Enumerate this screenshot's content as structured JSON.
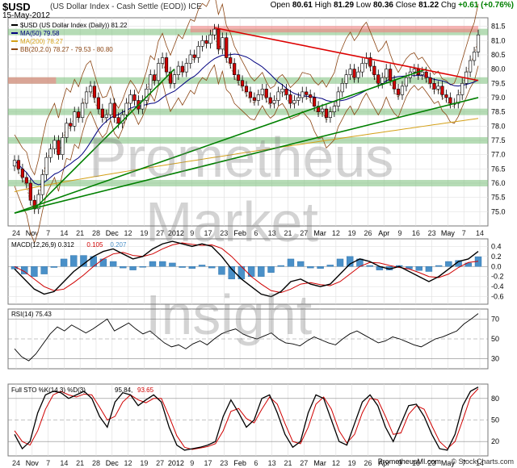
{
  "header": {
    "ticker": "$USD",
    "title": "(US Dollar Index - Cash Settle (EOD)) ICE",
    "date": "15-May-2012",
    "open_label": "Open",
    "open": "80.61",
    "high_label": "High",
    "high": "81.29",
    "low_label": "Low",
    "low": "80.36",
    "close_label": "Close",
    "close": "81.22",
    "chg_label": "Chg",
    "chg": "+0.61 (+0.76%)"
  },
  "watermark": [
    "Prometheus",
    "Market",
    "Insight"
  ],
  "footer": {
    "site": "PrometheusMI.com",
    "credit": "© StockCharts.com"
  },
  "colors": {
    "up": "#ffffff",
    "down": "#d00000",
    "ma50": "#000080",
    "ma200": "#d4a017",
    "bb": "#8b4513",
    "macd_hist": "#4a90c8",
    "signal": "#d00000",
    "trend_green": "#008000",
    "trend_red": "#dd0000",
    "support_green": "#7ac07a",
    "resist_red": "#f08080"
  },
  "x_axis_labels": [
    "24",
    "Nov",
    "7",
    "14",
    "21",
    "28",
    "Dec",
    "12",
    "19",
    "27",
    "2012",
    "9",
    "17",
    "23",
    "Feb",
    "6",
    "13",
    "21",
    "27",
    "Mar",
    "12",
    "19",
    "26",
    "Apr",
    "9",
    "16",
    "23",
    "May",
    "7",
    "14"
  ],
  "chart_data": [
    {
      "type": "candlestick",
      "title": "$USD (US Dollar Index (Daily)) 81.22",
      "legend": [
        {
          "name": "$USD (US Dollar Index (Daily)) 81.22",
          "color": "#000000"
        },
        {
          "name": "MA(50) 79.58",
          "color": "#000080"
        },
        {
          "name": "MA(200) 78.27",
          "color": "#d4a017"
        },
        {
          "name": "BB(20,2.0) 78.27 - 79.53 - 80.80",
          "color": "#8b4513"
        }
      ],
      "ylim": [
        74.5,
        81.8
      ],
      "yticks": [
        75.0,
        75.5,
        76.0,
        76.5,
        77.0,
        77.5,
        78.0,
        78.5,
        79.0,
        79.5,
        80.0,
        80.5,
        81.0,
        81.5
      ],
      "close_series": [
        76.8,
        76.5,
        76.2,
        76.0,
        75.4,
        75.1,
        75.6,
        76.3,
        76.9,
        77.2,
        77.5,
        77.0,
        77.6,
        78.1,
        78.0,
        78.5,
        78.3,
        78.8,
        79.2,
        79.4,
        79.0,
        78.6,
        78.3,
        78.4,
        78.8,
        78.3,
        78.1,
        78.4,
        78.8,
        79.1,
        78.9,
        78.6,
        78.9,
        79.3,
        79.8,
        79.6,
        80.2,
        80.4,
        79.9,
        79.5,
        79.8,
        80.1,
        79.9,
        80.2,
        80.5,
        80.4,
        80.8,
        81.0,
        80.9,
        81.2,
        81.4,
        80.7,
        81.1,
        80.4,
        80.2,
        79.8,
        79.6,
        79.4,
        79.2,
        79.0,
        78.9,
        79.1,
        79.3,
        79.0,
        78.8,
        78.9,
        79.2,
        79.3,
        79.1,
        78.8,
        78.9,
        79.0,
        79.2,
        79.1,
        79.0,
        78.7,
        78.5,
        78.6,
        78.3,
        78.5,
        78.7,
        79.2,
        79.5,
        79.8,
        80.0,
        79.7,
        79.9,
        80.2,
        80.4,
        80.1,
        79.8,
        79.5,
        79.7,
        80.0,
        79.6,
        79.3,
        79.1,
        79.4,
        79.7,
        79.9,
        80.0,
        79.8,
        79.9,
        79.7,
        79.5,
        79.3,
        79.4,
        79.1,
        79.0,
        78.8,
        78.8,
        79.1,
        79.5,
        79.9,
        80.3,
        80.6,
        81.2
      ],
      "ma50": {
        "start": 76.6,
        "end": 79.58
      },
      "ma200": {
        "start": 75.7,
        "end": 78.27
      },
      "trendlines": [
        {
          "color": "green",
          "from": [
            0,
            74.95
          ],
          "to": [
            103,
            80.0
          ]
        },
        {
          "color": "green",
          "from": [
            0,
            74.95
          ],
          "to": [
            116,
            79.0
          ]
        },
        {
          "color": "green",
          "from": [
            5,
            75.1
          ],
          "to": [
            40,
            80.0
          ]
        },
        {
          "color": "red",
          "from": [
            50,
            81.45
          ],
          "to": [
            116,
            79.6
          ]
        }
      ],
      "support_zones": [
        81.3,
        79.6,
        78.5,
        77.5,
        76.0
      ],
      "resistance_zones": [
        81.4,
        79.6
      ]
    },
    {
      "type": "line",
      "title": "MACD(12,26,9) 0.312, 0.105, 0.207",
      "series": [
        {
          "name": "MACD(12,26,9) 0.312",
          "color": "#000000"
        },
        {
          "name": "0.105",
          "color": "#d00000"
        },
        {
          "name": "0.207",
          "color": "#4a90c8"
        }
      ],
      "ylim": [
        -0.75,
        0.55
      ],
      "yticks": [
        -0.6,
        -0.4,
        -0.2,
        0.0,
        0.2,
        0.4
      ],
      "macd": [
        -0.05,
        -0.25,
        -0.45,
        -0.55,
        -0.5,
        -0.3,
        -0.1,
        0.05,
        0.2,
        0.3,
        0.35,
        0.25,
        0.15,
        0.2,
        0.35,
        0.45,
        0.5,
        0.45,
        0.4,
        0.45,
        0.4,
        0.2,
        -0.05,
        -0.25,
        -0.4,
        -0.55,
        -0.6,
        -0.5,
        -0.3,
        -0.25,
        -0.35,
        -0.4,
        -0.35,
        -0.15,
        0.05,
        0.15,
        0.1,
        0.0,
        -0.05,
        0.0,
        -0.1,
        -0.2,
        -0.3,
        -0.2,
        -0.05,
        0.1,
        0.15,
        0.3
      ],
      "signal": [
        0.0,
        -0.1,
        -0.25,
        -0.4,
        -0.48,
        -0.45,
        -0.32,
        -0.17,
        0.0,
        0.15,
        0.25,
        0.28,
        0.22,
        0.2,
        0.25,
        0.35,
        0.43,
        0.47,
        0.44,
        0.42,
        0.43,
        0.36,
        0.2,
        0.0,
        -0.2,
        -0.35,
        -0.48,
        -0.52,
        -0.45,
        -0.35,
        -0.32,
        -0.36,
        -0.38,
        -0.3,
        -0.15,
        0.0,
        0.08,
        0.07,
        0.02,
        -0.02,
        -0.05,
        -0.12,
        -0.2,
        -0.22,
        -0.15,
        -0.02,
        0.08,
        0.105
      ]
    },
    {
      "type": "line",
      "title": "RSI(14) 75.43",
      "ylim": [
        20,
        80
      ],
      "yticks": [
        30,
        50,
        70
      ],
      "values": [
        40,
        32,
        28,
        35,
        45,
        55,
        62,
        58,
        64,
        60,
        56,
        60,
        65,
        70,
        58,
        62,
        66,
        60,
        55,
        58,
        52,
        46,
        42,
        44,
        40,
        45,
        48,
        44,
        50,
        55,
        58,
        60,
        55,
        52,
        50,
        53,
        56,
        50,
        46,
        45,
        43,
        48,
        52,
        49,
        46,
        44,
        50,
        55,
        58,
        54,
        50,
        46,
        48,
        52,
        50,
        47,
        44,
        42,
        46,
        50,
        52,
        55,
        58,
        65,
        70,
        75.43
      ]
    },
    {
      "type": "line",
      "title": "Full STO %K(14,3) %D(3) 95.84, 93.65",
      "series": [
        {
          "name": "%K(14,3) 95.84",
          "color": "#000000"
        },
        {
          "name": "%D(3) 93.65",
          "color": "#d00000"
        }
      ],
      "ylim": [
        0,
        100
      ],
      "yticks": [
        20,
        50,
        80
      ],
      "k": [
        30,
        10,
        20,
        60,
        85,
        90,
        88,
        80,
        85,
        90,
        80,
        55,
        40,
        75,
        88,
        85,
        70,
        78,
        85,
        75,
        40,
        15,
        8,
        10,
        12,
        15,
        20,
        55,
        78,
        60,
        40,
        50,
        80,
        85,
        60,
        30,
        12,
        20,
        60,
        85,
        80,
        50,
        20,
        15,
        45,
        75,
        85,
        70,
        40,
        20,
        45,
        70,
        72,
        55,
        30,
        10,
        8,
        30,
        70,
        90,
        95.84
      ],
      "d": [
        35,
        20,
        15,
        35,
        65,
        85,
        90,
        85,
        82,
        86,
        85,
        68,
        50,
        55,
        75,
        85,
        78,
        74,
        80,
        80,
        55,
        28,
        12,
        9,
        11,
        13,
        17,
        35,
        62,
        66,
        52,
        46,
        65,
        82,
        72,
        45,
        20,
        17,
        40,
        72,
        82,
        65,
        35,
        18,
        30,
        60,
        80,
        78,
        55,
        30,
        32,
        58,
        70,
        65,
        42,
        20,
        10,
        20,
        50,
        82,
        93.65
      ]
    }
  ]
}
